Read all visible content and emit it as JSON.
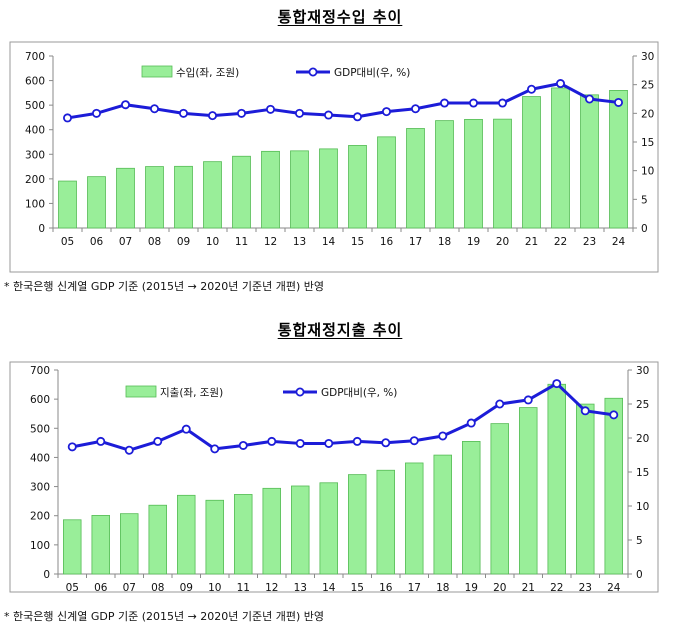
{
  "charts": [
    {
      "title": "통합재정수입  추이",
      "note": "* 한국은행 신계열 GDP 기준 (2015년 → 2020년 기준년 개편) 반영"
    },
    {
      "title": "통합재정지출  추이",
      "note": "* 한국은행 신계열 GDP 기준 (2015년 → 2020년 기준년 개편) 반영"
    }
  ],
  "colors": {
    "bar_fill": "#99ee99",
    "bar_stroke": "#55bb55",
    "line": "#1c1cd8",
    "marker_fill": "#ffffff"
  },
  "chart_data": [
    {
      "type": "bar",
      "title": "통합재정수입  추이",
      "categories": [
        "05",
        "06",
        "07",
        "08",
        "09",
        "10",
        "11",
        "12",
        "13",
        "14",
        "15",
        "16",
        "17",
        "18",
        "19",
        "20",
        "21",
        "22",
        "23",
        "24"
      ],
      "ylim": [
        0,
        700
      ],
      "y_ticks": [
        0,
        100,
        200,
        300,
        400,
        500,
        600,
        700
      ],
      "y2lim": [
        0,
        30
      ],
      "y2_ticks": [
        0,
        5,
        10,
        15,
        20,
        25,
        30
      ],
      "legend": "top-center",
      "series": [
        {
          "name": "수입(좌, 조원)",
          "kind": "bar",
          "axis": "left",
          "values": [
            191,
            209,
            243,
            250,
            251,
            270,
            292,
            312,
            314,
            322,
            336,
            371,
            405,
            437,
            442,
            443,
            535,
            570,
            542,
            560
          ]
        },
        {
          "name": "GDP대비(우, %)",
          "kind": "line",
          "axis": "right",
          "values": [
            19.2,
            20.0,
            21.5,
            20.8,
            20.0,
            19.6,
            20.0,
            20.7,
            20.0,
            19.7,
            19.4,
            20.3,
            20.8,
            21.8,
            21.8,
            21.8,
            24.2,
            25.2,
            22.5,
            21.9
          ]
        }
      ]
    },
    {
      "type": "bar",
      "title": "통합재정지출  추이",
      "categories": [
        "05",
        "06",
        "07",
        "08",
        "09",
        "10",
        "11",
        "12",
        "13",
        "14",
        "15",
        "16",
        "17",
        "18",
        "19",
        "20",
        "21",
        "22",
        "23",
        "24"
      ],
      "ylim": [
        0,
        700
      ],
      "y_ticks": [
        0,
        100,
        200,
        300,
        400,
        500,
        600,
        700
      ],
      "y2lim": [
        0,
        30
      ],
      "y2_ticks": [
        0,
        5,
        10,
        15,
        20,
        25,
        30
      ],
      "legend": "top-center",
      "series": [
        {
          "name": "지출(좌, 조원)",
          "kind": "bar",
          "axis": "left",
          "values": [
            186,
            201,
            207,
            236,
            270,
            253,
            273,
            294,
            302,
            313,
            341,
            356,
            381,
            408,
            455,
            516,
            571,
            651,
            583,
            603
          ]
        },
        {
          "name": "GDP대비(우, %)",
          "kind": "line",
          "axis": "right",
          "values": [
            18.7,
            19.5,
            18.2,
            19.5,
            21.3,
            18.4,
            18.9,
            19.5,
            19.2,
            19.2,
            19.5,
            19.3,
            19.6,
            20.3,
            22.2,
            25.0,
            25.6,
            28.0,
            24.0,
            23.4
          ]
        }
      ]
    }
  ]
}
